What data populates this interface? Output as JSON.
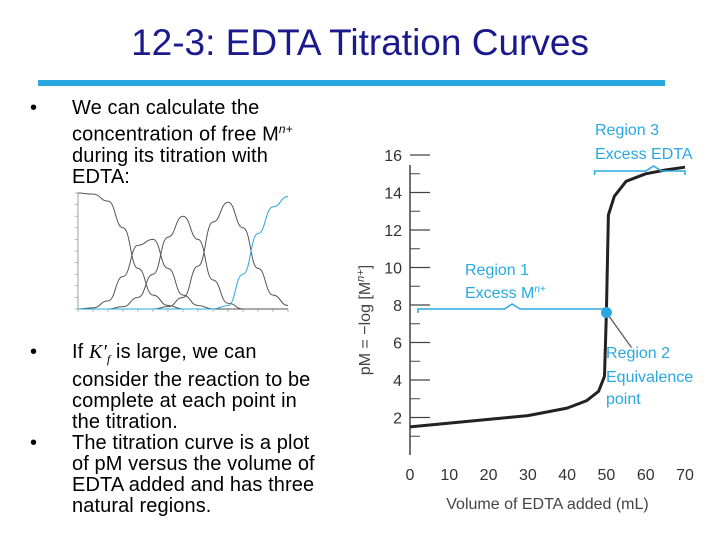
{
  "slide": {
    "title": "12-3: EDTA Titration Curves",
    "bullet1": "We can calculate the concentration of free M",
    "bullet1_sup": "n+",
    "bullet1_tail": "during its titration with EDTA:",
    "bullet2_pre": "If",
    "bullet2_k": "K′",
    "bullet2_ksub": "f",
    "bullet2_post": "is large, we can consider the reaction to be complete at each point in the titration.",
    "bullet3": "The titration curve is a plot of pM versus the volume of EDTA added and has three natural regions."
  },
  "chart_data": [
    {
      "type": "line",
      "title": "",
      "xlabel": "Volume of EDTA added (mL)",
      "ylabel": "pM = −log [M",
      "ylabel_sup": "n+",
      "ylabel_close": "]",
      "xlim": [
        0,
        70
      ],
      "ylim": [
        0,
        16
      ],
      "x_ticks": [
        0,
        10,
        20,
        30,
        40,
        50,
        60,
        70
      ],
      "y_ticks": [
        2,
        4,
        6,
        8,
        10,
        12,
        14,
        16
      ],
      "x": [
        0,
        5,
        10,
        15,
        20,
        25,
        30,
        35,
        40,
        45,
        48,
        49.5,
        50,
        50.5,
        52,
        55,
        60,
        65,
        70
      ],
      "series": [
        {
          "values": [
            1.5,
            1.6,
            1.7,
            1.8,
            1.9,
            2.0,
            2.1,
            2.3,
            2.5,
            2.9,
            3.4,
            4.2,
            7.6,
            12.8,
            13.8,
            14.6,
            15.0,
            15.2,
            15.35
          ]
        }
      ],
      "equivalence_point": {
        "x": 50,
        "y": 7.6
      },
      "regions": [
        {
          "label_line1": "Region 1",
          "label_line2": "Excess M",
          "label_sup": "n+"
        },
        {
          "label_line1": "Region 2",
          "label_line2": "Equivalence",
          "label_line3": "point"
        },
        {
          "label_line1": "Region 3",
          "label_line2": "Excess EDTA"
        }
      ],
      "colors": {
        "curve": "#222222",
        "annotation": "#29a8e0",
        "point": "#29a8e0"
      }
    },
    {
      "type": "line",
      "title": "",
      "xlim": [
        0,
        14
      ],
      "ylim": [
        0,
        1
      ],
      "series": [
        {
          "values": [
            1.0,
            0.99,
            0.93,
            0.7,
            0.35,
            0.12,
            0.03,
            0.0,
            0.0,
            0.0,
            0.0,
            0.0,
            0.0,
            0.0,
            0.0
          ]
        },
        {
          "values": [
            0.0,
            0.01,
            0.07,
            0.28,
            0.55,
            0.6,
            0.35,
            0.12,
            0.03,
            0.0,
            0.0,
            0.0,
            0.0,
            0.0,
            0.0
          ]
        },
        {
          "values": [
            0.0,
            0.0,
            0.0,
            0.02,
            0.1,
            0.3,
            0.62,
            0.8,
            0.6,
            0.25,
            0.05,
            0.0,
            0.0,
            0.0,
            0.0
          ]
        },
        {
          "values": [
            0.0,
            0.0,
            0.0,
            0.0,
            0.0,
            0.0,
            0.02,
            0.1,
            0.37,
            0.75,
            0.92,
            0.7,
            0.35,
            0.12,
            0.03
          ]
        },
        {
          "values": [
            0.0,
            0.0,
            0.0,
            0.0,
            0.0,
            0.0,
            0.0,
            0.0,
            0.0,
            0.0,
            0.03,
            0.3,
            0.65,
            0.88,
            0.97
          ]
        }
      ],
      "colors": {
        "lines": "#555555",
        "last": "#29a8e0"
      }
    }
  ]
}
